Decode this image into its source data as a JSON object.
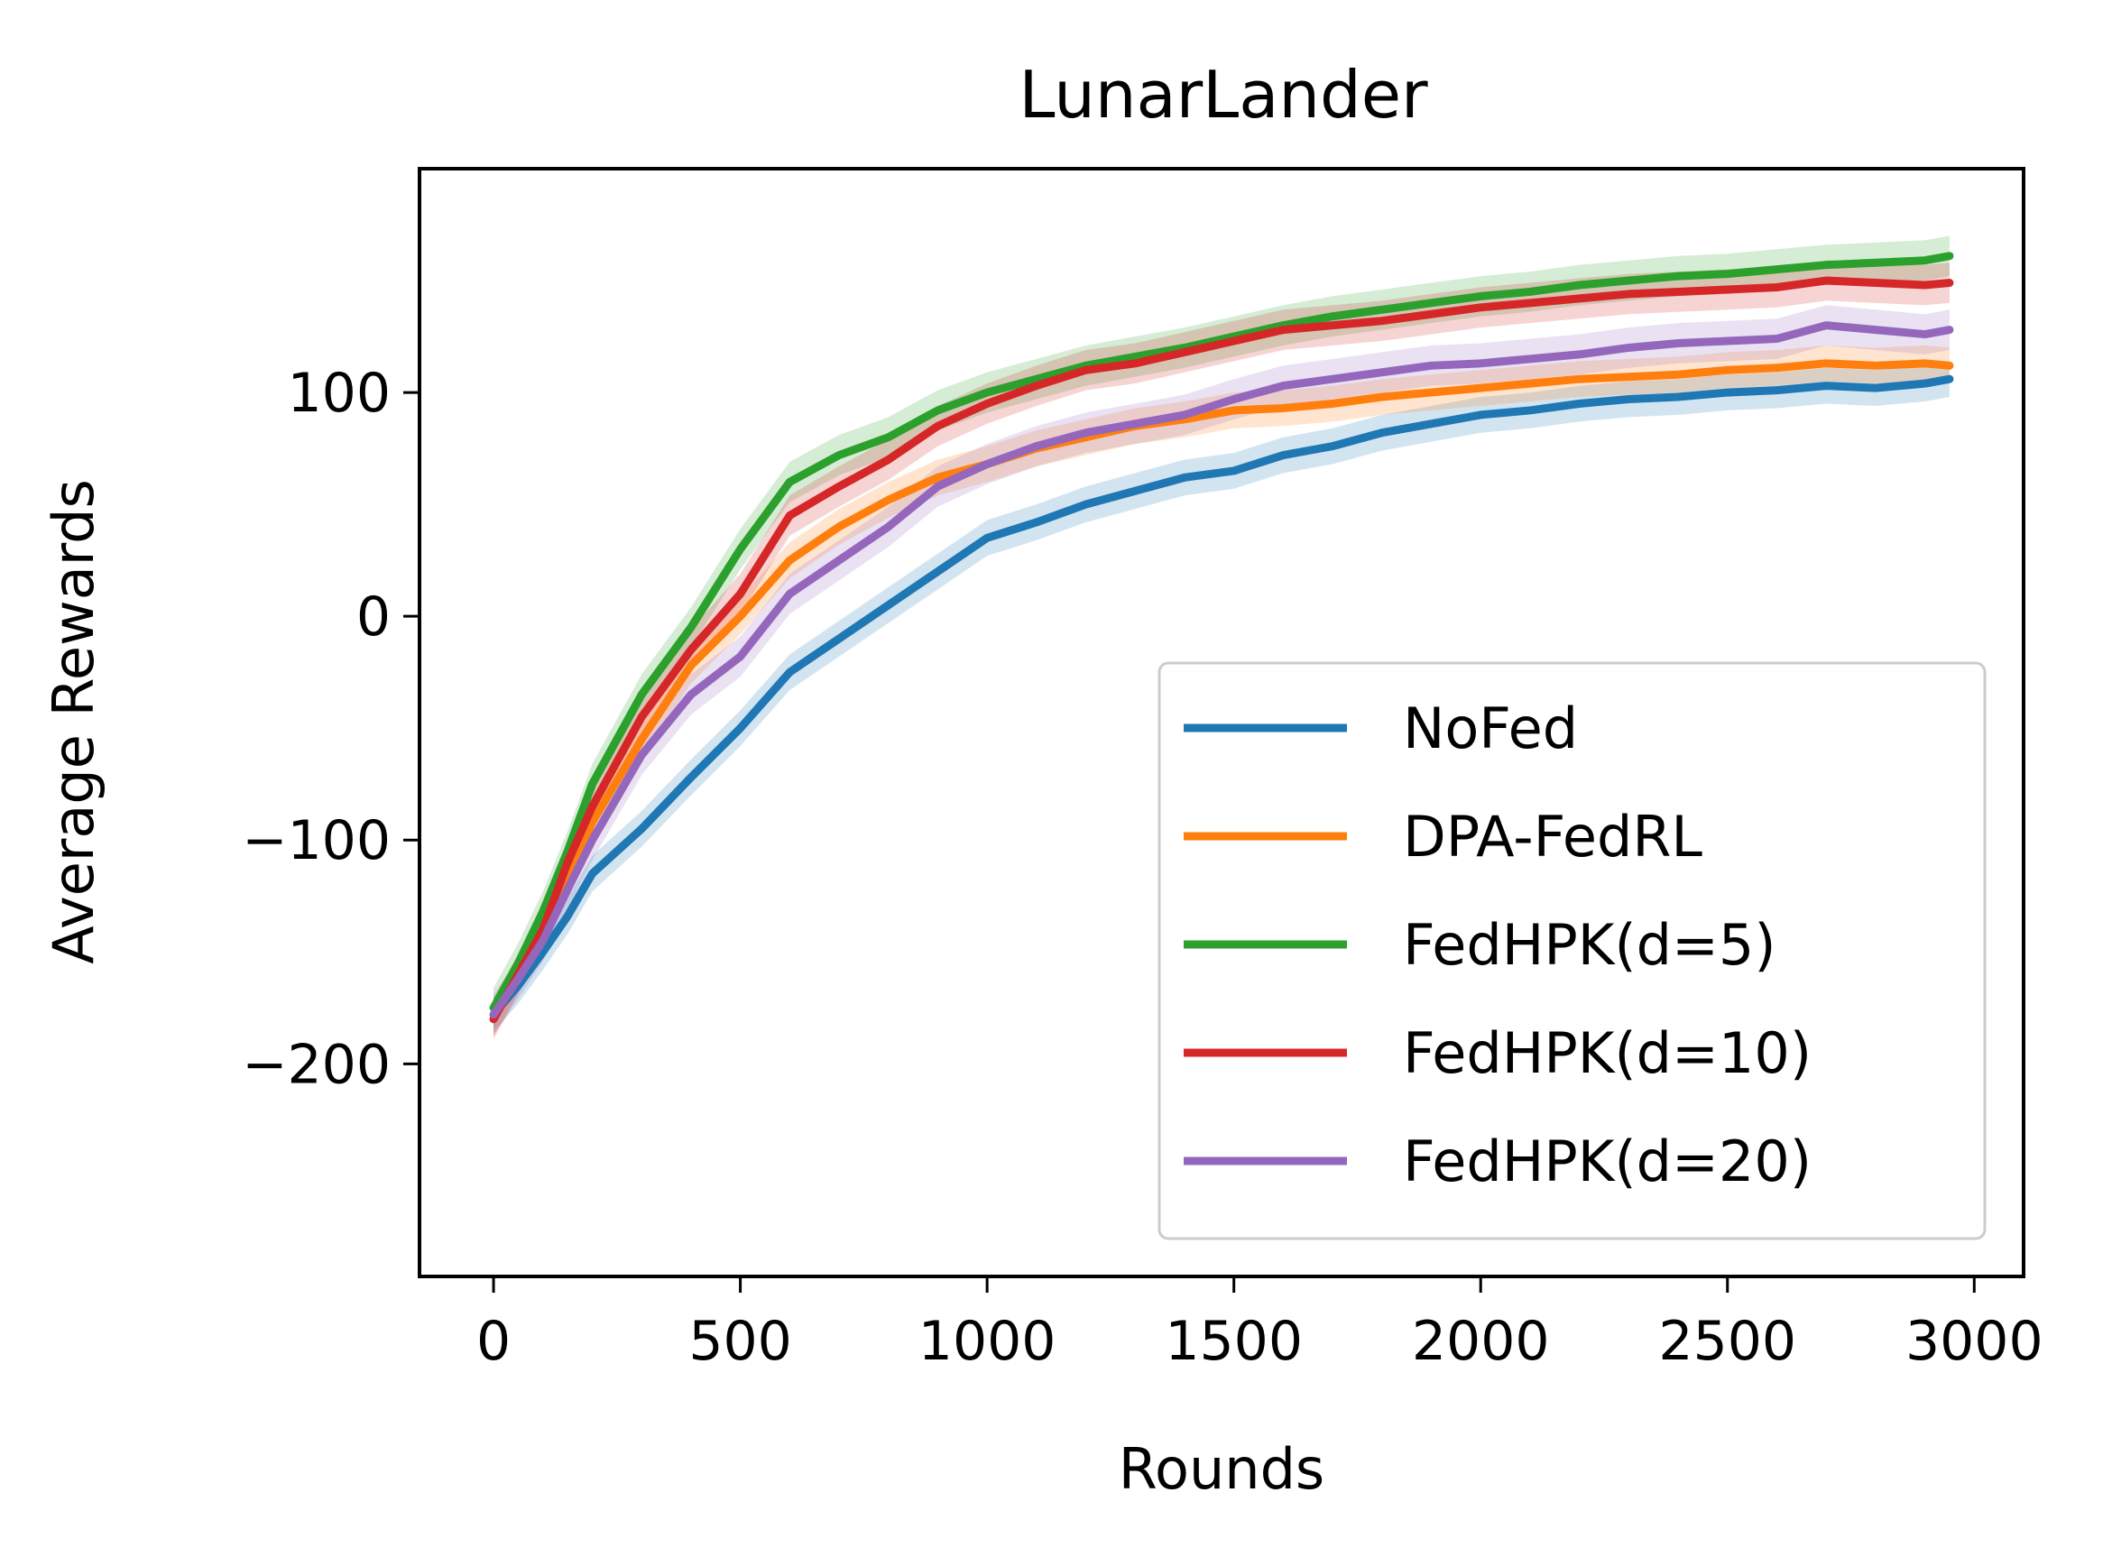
{
  "chart_data": {
    "type": "line",
    "title": "LunarLander",
    "xlabel": "Rounds",
    "ylabel": "Average Rewards",
    "xlim": [
      -150,
      3100
    ],
    "ylim": [
      -295,
      200
    ],
    "xticks": [
      0,
      500,
      1000,
      1500,
      2000,
      2500,
      3000
    ],
    "yticks": [
      -200,
      -100,
      0,
      100
    ],
    "xtick_labels": [
      "0",
      "500",
      "1000",
      "1500",
      "2000",
      "2500",
      "3000"
    ],
    "ytick_labels": [
      "−200",
      "−100",
      "0",
      "100"
    ],
    "grid": false,
    "legend_position": "lower-right",
    "x": [
      0,
      50,
      100,
      150,
      200,
      300,
      400,
      500,
      600,
      700,
      800,
      900,
      1000,
      1100,
      1200,
      1300,
      1400,
      1500,
      1600,
      1700,
      1800,
      1900,
      2000,
      2100,
      2200,
      2300,
      2400,
      2500,
      2600,
      2700,
      2800,
      2900,
      2950
    ],
    "series": [
      {
        "name": "NoFed",
        "color": "#1f77b4",
        "band": 8,
        "values": [
          -178,
          -165,
          -150,
          -134,
          -115,
          -95,
          -72,
          -50,
          -25,
          -10,
          5,
          20,
          35,
          42,
          50,
          56,
          62,
          65,
          72,
          76,
          82,
          86,
          90,
          92,
          95,
          97,
          98,
          100,
          101,
          103,
          102,
          104,
          106
        ]
      },
      {
        "name": "DPA-FedRL",
        "color": "#ff7f0e",
        "band": 8,
        "values": [
          -180,
          -160,
          -140,
          -118,
          -92,
          -55,
          -22,
          0,
          25,
          40,
          52,
          62,
          68,
          75,
          80,
          85,
          88,
          92,
          93,
          95,
          98,
          100,
          102,
          104,
          106,
          107,
          108,
          110,
          111,
          113,
          112,
          113,
          112
        ]
      },
      {
        "name": "FedHPK(d=5)",
        "color": "#2ca02c",
        "band": 9,
        "values": [
          -175,
          -155,
          -132,
          -105,
          -75,
          -35,
          -5,
          30,
          60,
          72,
          80,
          92,
          100,
          106,
          112,
          116,
          120,
          125,
          130,
          134,
          137,
          140,
          143,
          145,
          148,
          150,
          152,
          153,
          155,
          157,
          158,
          159,
          161
        ]
      },
      {
        "name": "FedHPK(d=10)",
        "color": "#d62728",
        "band": 9,
        "values": [
          -180,
          -160,
          -140,
          -110,
          -85,
          -45,
          -15,
          10,
          45,
          58,
          70,
          85,
          95,
          103,
          110,
          113,
          118,
          123,
          128,
          130,
          132,
          135,
          138,
          140,
          142,
          144,
          145,
          146,
          147,
          150,
          149,
          148,
          149
        ]
      },
      {
        "name": "FedHPK(d=20)",
        "color": "#9467bd",
        "band": 9,
        "values": [
          -178,
          -162,
          -145,
          -122,
          -100,
          -62,
          -35,
          -18,
          10,
          25,
          40,
          58,
          68,
          76,
          82,
          86,
          90,
          97,
          103,
          106,
          109,
          112,
          113,
          115,
          117,
          120,
          122,
          123,
          124,
          130,
          128,
          126,
          128
        ]
      }
    ]
  }
}
